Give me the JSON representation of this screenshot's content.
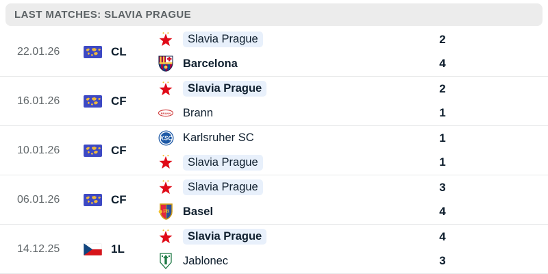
{
  "header": {
    "title": "LAST MATCHES: SLAVIA PRAGUE"
  },
  "colors": {
    "header_bg": "#ececec",
    "header_text": "#5c6265",
    "text_dark": "#0e1e2d",
    "date_gray": "#62686b",
    "team_highlight_bg": "#e8f0fb",
    "row_divider": "#e8e9ea",
    "world_flag_blue": "#3d49c4",
    "world_flag_map_yellow": "#eeb93c",
    "czech_flag_red": "#d7141a",
    "czech_flag_blue": "#11457e",
    "slavia_red": "#e00a17"
  },
  "matches": [
    {
      "date": "22.01.26",
      "competition": "CL",
      "competition_icon": "world-flag-icon",
      "home": {
        "name": "Slavia Prague",
        "score": "2",
        "bold": false,
        "highlight": true,
        "logo": "slavia-star-logo"
      },
      "away": {
        "name": "Barcelona",
        "score": "4",
        "bold": true,
        "highlight": false,
        "logo": "barcelona-crest-logo"
      }
    },
    {
      "date": "16.01.26",
      "competition": "CF",
      "competition_icon": "world-flag-icon",
      "home": {
        "name": "Slavia Prague",
        "score": "2",
        "bold": true,
        "highlight": true,
        "logo": "slavia-star-logo"
      },
      "away": {
        "name": "Brann",
        "score": "1",
        "bold": false,
        "highlight": false,
        "logo": "brann-oval-logo"
      }
    },
    {
      "date": "10.01.26",
      "competition": "CF",
      "competition_icon": "world-flag-icon",
      "home": {
        "name": "Karlsruher SC",
        "score": "1",
        "bold": false,
        "highlight": false,
        "logo": "karlsruher-circle-logo"
      },
      "away": {
        "name": "Slavia Prague",
        "score": "1",
        "bold": false,
        "highlight": true,
        "logo": "slavia-star-logo"
      }
    },
    {
      "date": "06.01.26",
      "competition": "CF",
      "competition_icon": "world-flag-icon",
      "home": {
        "name": "Slavia Prague",
        "score": "3",
        "bold": false,
        "highlight": true,
        "logo": "slavia-star-logo"
      },
      "away": {
        "name": "Basel",
        "score": "4",
        "bold": true,
        "highlight": false,
        "logo": "basel-crest-logo"
      }
    },
    {
      "date": "14.12.25",
      "competition": "1L",
      "competition_icon": "czech-flag-icon",
      "home": {
        "name": "Slavia Prague",
        "score": "4",
        "bold": true,
        "highlight": true,
        "logo": "slavia-star-logo"
      },
      "away": {
        "name": "Jablonec",
        "score": "3",
        "bold": false,
        "highlight": false,
        "logo": "jablonec-crest-logo"
      }
    }
  ]
}
